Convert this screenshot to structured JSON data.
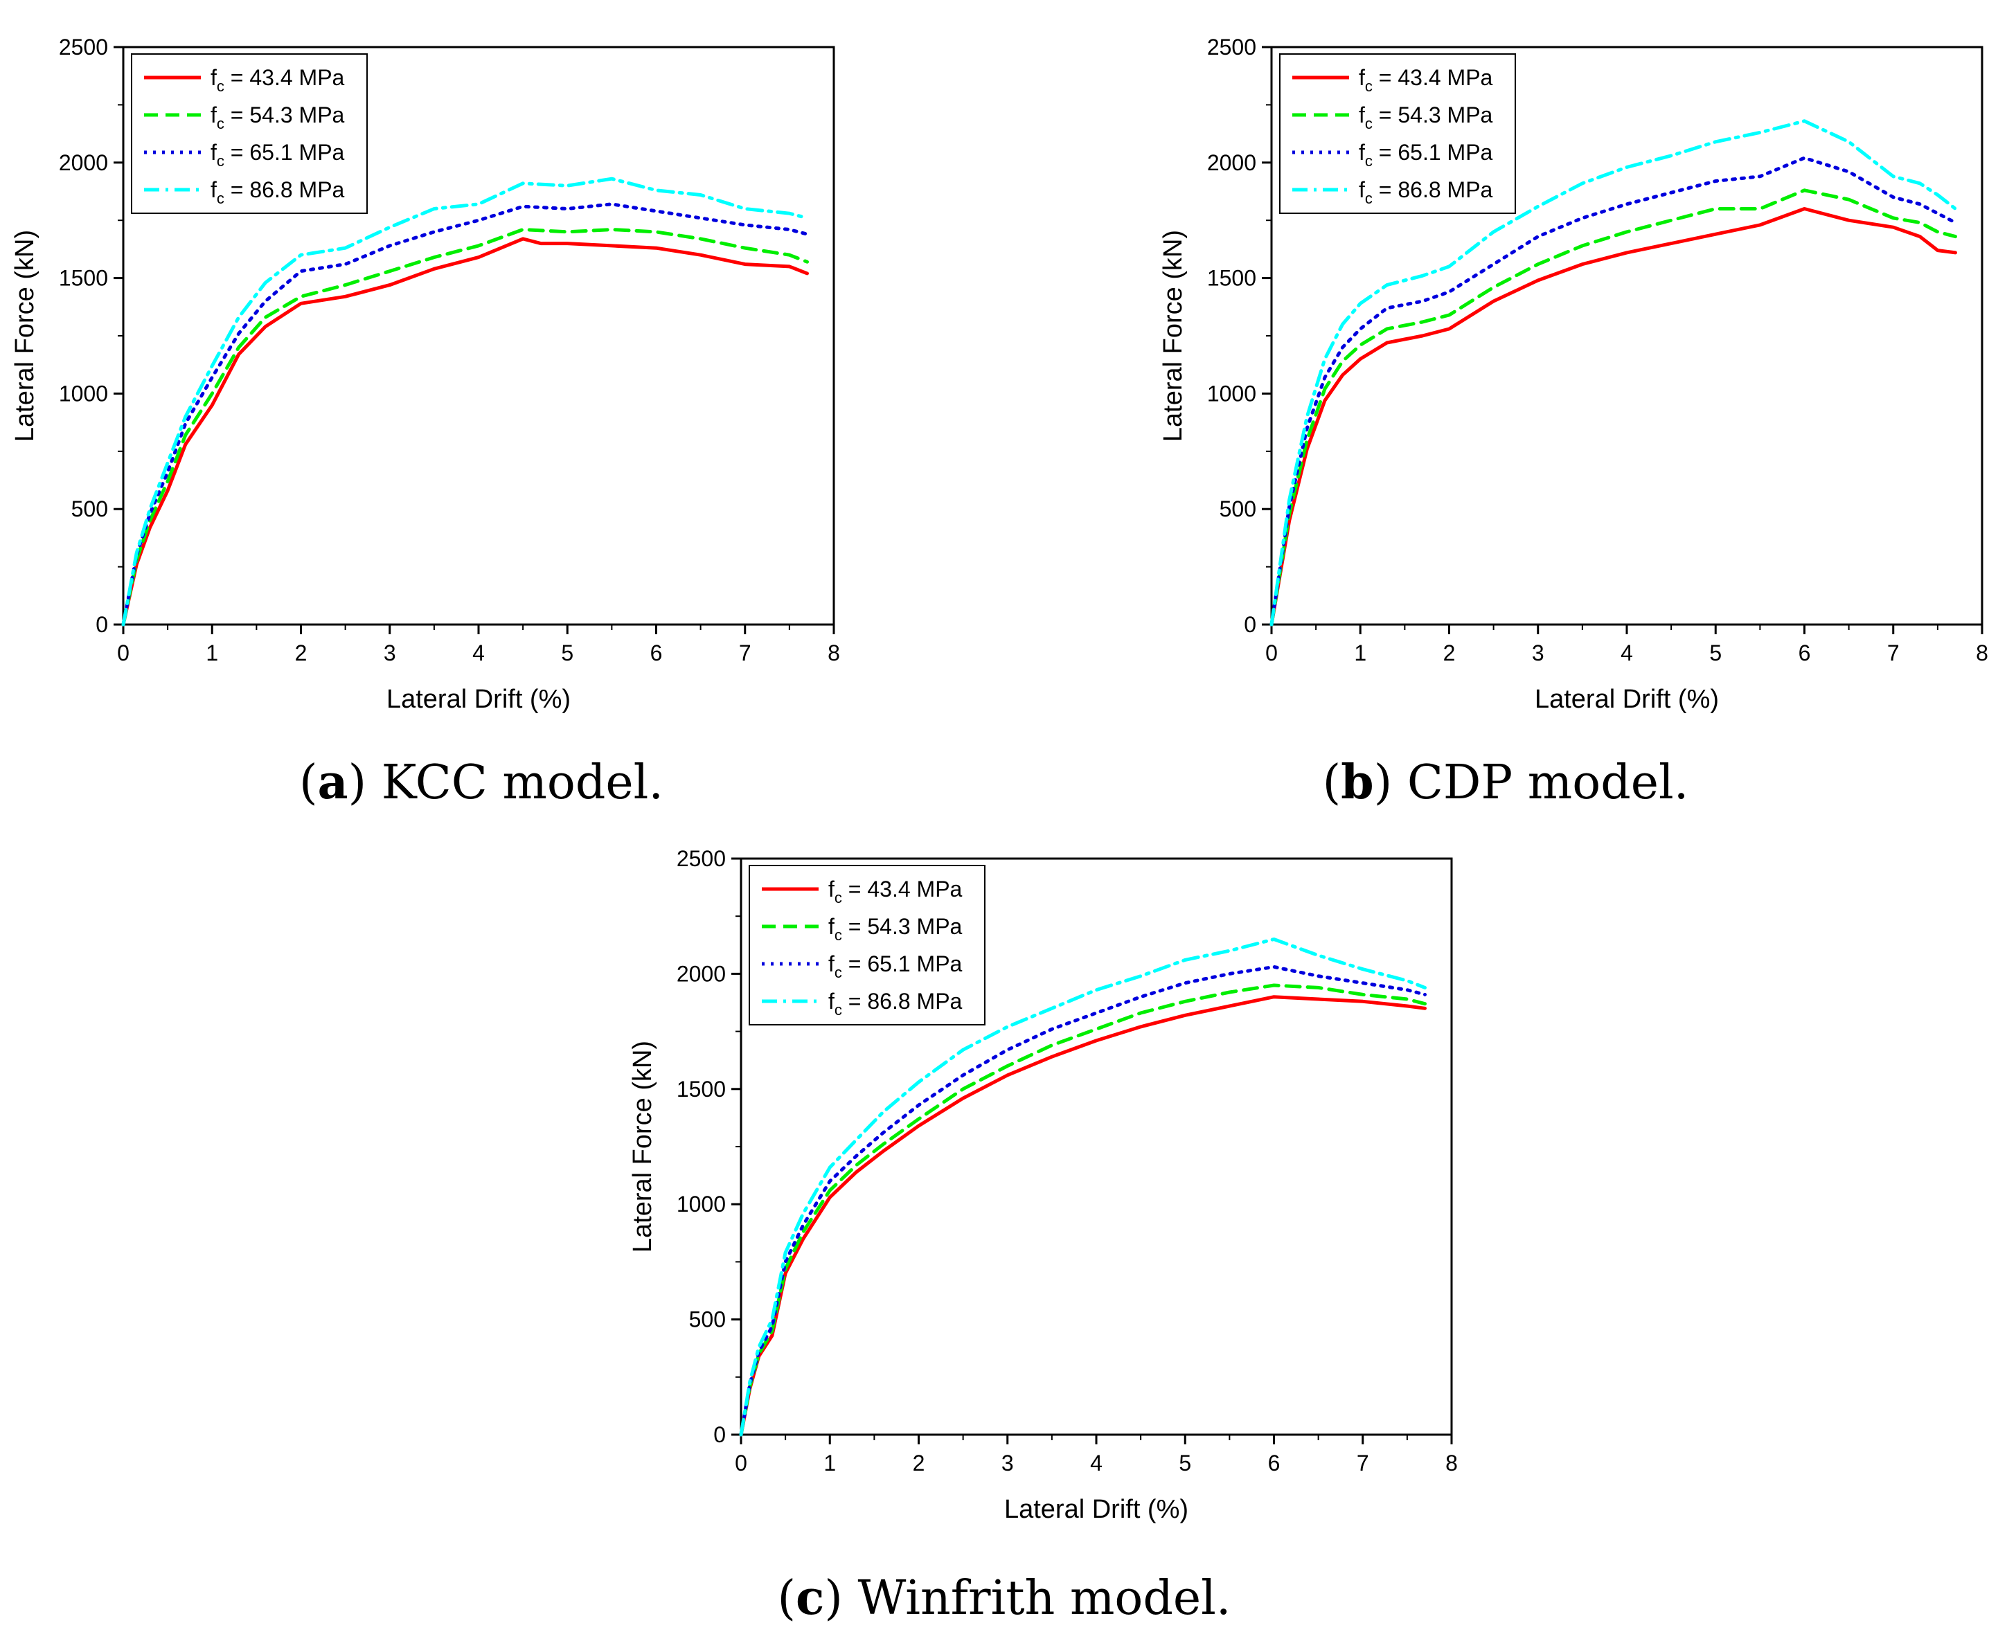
{
  "captions": [
    {
      "letter": "a",
      "text": ") KCC model.",
      "open": "("
    },
    {
      "letter": "b",
      "text": ") CDP model.",
      "open": "("
    },
    {
      "letter": "c",
      "text": ") Winfrith model.",
      "open": "("
    }
  ],
  "chart_data": [
    {
      "id": "kcc",
      "type": "line",
      "title": "",
      "xlabel": "Lateral Drift (%)",
      "ylabel": "Lateral Force (kN)",
      "xlim": [
        0,
        8
      ],
      "ylim": [
        0,
        2500
      ],
      "xticks": [
        "0",
        "1",
        "2",
        "3",
        "4",
        "5",
        "6",
        "7",
        "8"
      ],
      "yticks": [
        "0",
        "500",
        "1000",
        "1500",
        "2000",
        "2500"
      ],
      "legend_position": "top-left",
      "series": [
        {
          "name_main": "f",
          "name_sub": "c",
          "name_rest": " = 43.4 MPa",
          "color": "#ff0000",
          "dash": "solid",
          "x": [
            0,
            0.15,
            0.3,
            0.5,
            0.7,
            1.0,
            1.3,
            1.6,
            2.0,
            2.5,
            3.0,
            3.5,
            4.0,
            4.5,
            4.7,
            5.0,
            5.5,
            6.0,
            6.5,
            7.0,
            7.5,
            7.7
          ],
          "y": [
            0,
            260,
            420,
            580,
            780,
            950,
            1170,
            1290,
            1390,
            1420,
            1470,
            1540,
            1590,
            1670,
            1650,
            1650,
            1640,
            1630,
            1600,
            1560,
            1550,
            1520
          ]
        },
        {
          "name_main": "f",
          "name_sub": "c",
          "name_rest": " = 54.3 MPa",
          "color": "#00ee00",
          "dash": "dashed",
          "x": [
            0,
            0.15,
            0.3,
            0.5,
            0.7,
            1.0,
            1.3,
            1.6,
            2.0,
            2.5,
            3.0,
            3.5,
            4.0,
            4.5,
            5.0,
            5.5,
            6.0,
            6.5,
            7.0,
            7.5,
            7.7
          ],
          "y": [
            0,
            280,
            450,
            620,
            820,
            1000,
            1200,
            1330,
            1420,
            1470,
            1530,
            1590,
            1640,
            1710,
            1700,
            1710,
            1700,
            1670,
            1630,
            1600,
            1570
          ]
        },
        {
          "name_main": "f",
          "name_sub": "c",
          "name_rest": " = 65.1 MPa",
          "color": "#0000dd",
          "dash": "dotted",
          "x": [
            0,
            0.15,
            0.3,
            0.5,
            0.7,
            1.0,
            1.3,
            1.6,
            2.0,
            2.5,
            3.0,
            3.5,
            4.0,
            4.5,
            5.0,
            5.5,
            6.0,
            6.5,
            7.0,
            7.5,
            7.7
          ],
          "y": [
            0,
            300,
            480,
            660,
            870,
            1070,
            1260,
            1400,
            1530,
            1560,
            1640,
            1700,
            1750,
            1810,
            1800,
            1820,
            1790,
            1760,
            1730,
            1710,
            1690
          ]
        },
        {
          "name_main": "f",
          "name_sub": "c",
          "name_rest": " = 86.8 MPa",
          "color": "#00ffff",
          "dash": "dashdot",
          "x": [
            0,
            0.15,
            0.3,
            0.5,
            0.7,
            1.0,
            1.3,
            1.6,
            2.0,
            2.5,
            3.0,
            3.5,
            4.0,
            4.5,
            5.0,
            5.5,
            6.0,
            6.5,
            7.0,
            7.5,
            7.7
          ],
          "y": [
            0,
            310,
            500,
            700,
            900,
            1120,
            1330,
            1480,
            1600,
            1630,
            1720,
            1800,
            1820,
            1910,
            1900,
            1930,
            1880,
            1860,
            1800,
            1780,
            1760
          ]
        }
      ]
    },
    {
      "id": "cdp",
      "type": "line",
      "title": "",
      "xlabel": "Lateral Drift (%)",
      "ylabel": "Lateral Force (kN)",
      "xlim": [
        0,
        8
      ],
      "ylim": [
        0,
        2500
      ],
      "xticks": [
        "0",
        "1",
        "2",
        "3",
        "4",
        "5",
        "6",
        "7",
        "8"
      ],
      "yticks": [
        "0",
        "500",
        "1000",
        "1500",
        "2000",
        "2500"
      ],
      "legend_position": "top-left",
      "series": [
        {
          "name_main": "f",
          "name_sub": "c",
          "name_rest": " = 43.4 MPa",
          "color": "#ff0000",
          "dash": "solid",
          "x": [
            0,
            0.2,
            0.4,
            0.6,
            0.8,
            1.0,
            1.3,
            1.7,
            2.0,
            2.5,
            3.0,
            3.5,
            4.0,
            4.5,
            5.0,
            5.5,
            6.0,
            6.5,
            7.0,
            7.3,
            7.5,
            7.7
          ],
          "y": [
            0,
            450,
            760,
            970,
            1080,
            1150,
            1220,
            1250,
            1280,
            1400,
            1490,
            1560,
            1610,
            1650,
            1690,
            1730,
            1800,
            1750,
            1720,
            1680,
            1620,
            1610
          ]
        },
        {
          "name_main": "f",
          "name_sub": "c",
          "name_rest": " = 54.3 MPa",
          "color": "#00ee00",
          "dash": "dashed",
          "x": [
            0,
            0.2,
            0.4,
            0.6,
            0.8,
            1.0,
            1.3,
            1.7,
            2.0,
            2.5,
            3.0,
            3.5,
            4.0,
            4.5,
            5.0,
            5.5,
            6.0,
            6.5,
            7.0,
            7.3,
            7.5,
            7.7
          ],
          "y": [
            0,
            480,
            800,
            1020,
            1140,
            1210,
            1280,
            1310,
            1340,
            1460,
            1560,
            1640,
            1700,
            1750,
            1800,
            1800,
            1880,
            1840,
            1760,
            1740,
            1700,
            1680
          ]
        },
        {
          "name_main": "f",
          "name_sub": "c",
          "name_rest": " = 65.1 MPa",
          "color": "#0000dd",
          "dash": "dotted",
          "x": [
            0,
            0.2,
            0.4,
            0.6,
            0.8,
            1.0,
            1.3,
            1.7,
            2.0,
            2.5,
            3.0,
            3.5,
            4.0,
            4.5,
            5.0,
            5.5,
            6.0,
            6.5,
            7.0,
            7.3,
            7.5,
            7.7
          ],
          "y": [
            0,
            510,
            850,
            1070,
            1200,
            1280,
            1370,
            1400,
            1440,
            1560,
            1680,
            1760,
            1820,
            1870,
            1920,
            1940,
            2020,
            1960,
            1850,
            1820,
            1780,
            1740
          ]
        },
        {
          "name_main": "f",
          "name_sub": "c",
          "name_rest": " = 86.8 MPa",
          "color": "#00ffff",
          "dash": "dashdot",
          "x": [
            0,
            0.2,
            0.4,
            0.6,
            0.8,
            1.0,
            1.3,
            1.7,
            2.0,
            2.5,
            3.0,
            3.5,
            4.0,
            4.5,
            5.0,
            5.5,
            6.0,
            6.5,
            7.0,
            7.3,
            7.5,
            7.7
          ],
          "y": [
            0,
            540,
            900,
            1150,
            1300,
            1390,
            1470,
            1510,
            1550,
            1700,
            1810,
            1910,
            1980,
            2030,
            2090,
            2130,
            2180,
            2090,
            1940,
            1910,
            1860,
            1800
          ]
        }
      ]
    },
    {
      "id": "winfrith",
      "type": "line",
      "title": "",
      "xlabel": "Lateral Drift (%)",
      "ylabel": "Lateral Force (kN)",
      "xlim": [
        0,
        8
      ],
      "ylim": [
        0,
        2500
      ],
      "xticks": [
        "0",
        "1",
        "2",
        "3",
        "4",
        "5",
        "6",
        "7",
        "8"
      ],
      "yticks": [
        "0",
        "500",
        "1000",
        "1500",
        "2000",
        "2500"
      ],
      "legend_position": "top-left",
      "series": [
        {
          "name_main": "f",
          "name_sub": "c",
          "name_rest": " = 43.4 MPa",
          "color": "#ff0000",
          "dash": "solid",
          "x": [
            0,
            0.1,
            0.2,
            0.35,
            0.5,
            0.7,
            1.0,
            1.3,
            1.6,
            2.0,
            2.5,
            3.0,
            3.5,
            4.0,
            4.5,
            5.0,
            5.5,
            6.0,
            6.5,
            7.0,
            7.5,
            7.7
          ],
          "y": [
            0,
            200,
            340,
            430,
            700,
            850,
            1030,
            1140,
            1230,
            1340,
            1460,
            1560,
            1640,
            1710,
            1770,
            1820,
            1860,
            1900,
            1890,
            1880,
            1860,
            1850
          ]
        },
        {
          "name_main": "f",
          "name_sub": "c",
          "name_rest": " = 54.3 MPa",
          "color": "#00ee00",
          "dash": "dashed",
          "x": [
            0,
            0.1,
            0.2,
            0.35,
            0.5,
            0.7,
            1.0,
            1.3,
            1.6,
            2.0,
            2.5,
            3.0,
            3.5,
            4.0,
            4.5,
            5.0,
            5.5,
            6.0,
            6.5,
            7.0,
            7.5,
            7.7
          ],
          "y": [
            0,
            210,
            350,
            450,
            720,
            880,
            1060,
            1170,
            1260,
            1370,
            1500,
            1600,
            1690,
            1760,
            1830,
            1880,
            1920,
            1950,
            1940,
            1910,
            1890,
            1870
          ]
        },
        {
          "name_main": "f",
          "name_sub": "c",
          "name_rest": " = 65.1 MPa",
          "color": "#0000dd",
          "dash": "dotted",
          "x": [
            0,
            0.1,
            0.2,
            0.35,
            0.5,
            0.7,
            1.0,
            1.3,
            1.6,
            2.0,
            2.5,
            3.0,
            3.5,
            4.0,
            4.5,
            5.0,
            5.5,
            6.0,
            6.5,
            7.0,
            7.5,
            7.7
          ],
          "y": [
            0,
            220,
            360,
            470,
            750,
            910,
            1100,
            1210,
            1310,
            1430,
            1560,
            1670,
            1760,
            1830,
            1900,
            1960,
            2000,
            2030,
            1990,
            1960,
            1930,
            1910
          ]
        },
        {
          "name_main": "f",
          "name_sub": "c",
          "name_rest": " = 86.8 MPa",
          "color": "#00ffff",
          "dash": "dashdot",
          "x": [
            0,
            0.1,
            0.2,
            0.35,
            0.5,
            0.7,
            1.0,
            1.3,
            1.6,
            2.0,
            2.5,
            3.0,
            3.5,
            4.0,
            4.5,
            5.0,
            5.5,
            6.0,
            6.5,
            7.0,
            7.5,
            7.7
          ],
          "y": [
            0,
            230,
            380,
            500,
            790,
            960,
            1160,
            1280,
            1400,
            1530,
            1670,
            1770,
            1850,
            1930,
            1990,
            2060,
            2100,
            2150,
            2080,
            2020,
            1970,
            1940
          ]
        }
      ]
    }
  ]
}
